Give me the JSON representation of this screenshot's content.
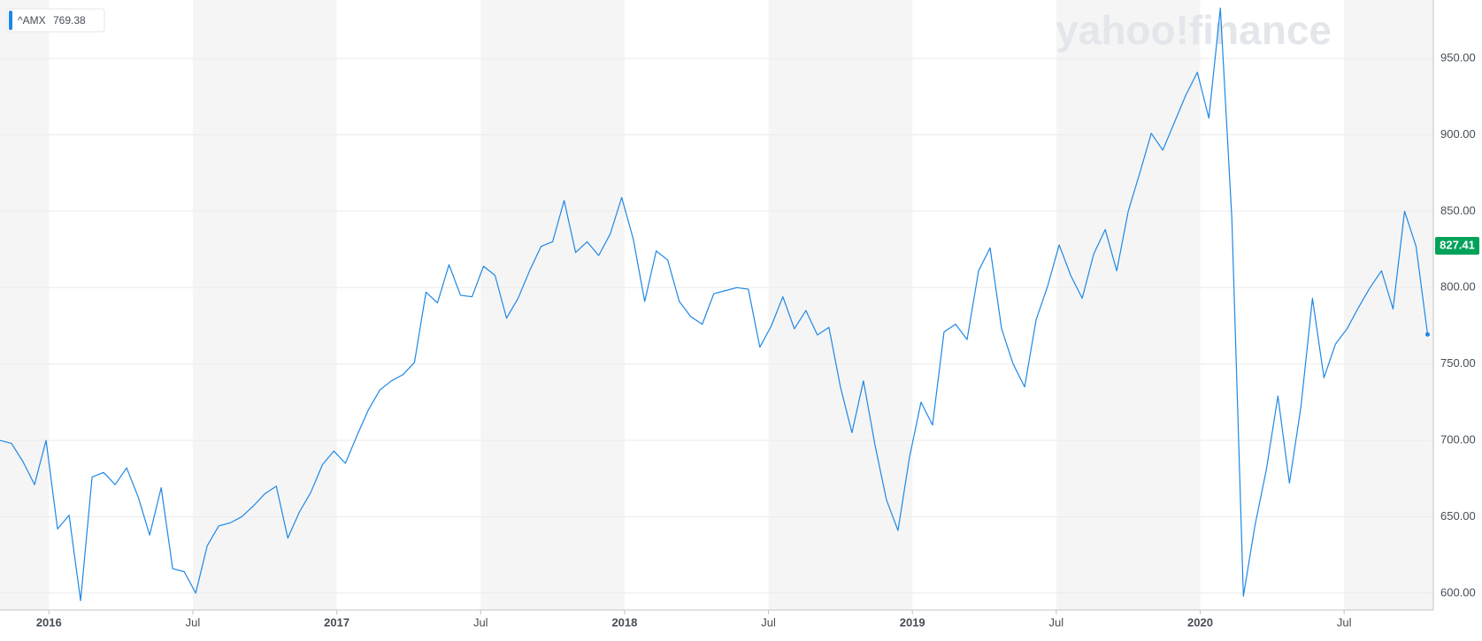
{
  "chart_data": {
    "type": "line",
    "watermark": "yahoo!finance",
    "legend": {
      "symbol": "^AMX",
      "value": 769.38
    },
    "marker_price": 827.41,
    "marker_color": "#00a25a",
    "band_color": "#f5f5f5",
    "grid": true,
    "xlim": [
      2015.83,
      2020.81
    ],
    "ylim": [
      588.9,
      988.3
    ],
    "xticks": [
      2016,
      {
        "value": 2016.5,
        "label": "Jul"
      },
      2017,
      {
        "value": 2017.5,
        "label": "Jul"
      },
      2018,
      {
        "value": 2018.5,
        "label": "Jul"
      },
      2019,
      {
        "value": 2019.5,
        "label": "Jul"
      },
      2020,
      {
        "value": 2020.5,
        "label": "Jul"
      }
    ],
    "yticks": [
      {
        "value": 600,
        "label": "600.00"
      },
      {
        "value": 650,
        "label": "650.00"
      },
      {
        "value": 700,
        "label": "700.00"
      },
      {
        "value": 750,
        "label": "750.00"
      },
      {
        "value": 800,
        "label": "800.00"
      },
      {
        "value": 850,
        "label": "850.00"
      },
      {
        "value": 900,
        "label": "900.00"
      },
      {
        "value": 950,
        "label": "950.00"
      }
    ],
    "x": [
      2015.83,
      2015.87,
      2015.91,
      2015.95,
      2015.99,
      2016.03,
      2016.07,
      2016.11,
      2016.15,
      2016.19,
      2016.23,
      2016.27,
      2016.31,
      2016.35,
      2016.39,
      2016.43,
      2016.47,
      2016.51,
      2016.55,
      2016.59,
      2016.63,
      2016.67,
      2016.71,
      2016.75,
      2016.79,
      2016.83,
      2016.87,
      2016.91,
      2016.95,
      2016.99,
      2017.03,
      2017.07,
      2017.11,
      2017.15,
      2017.19,
      2017.23,
      2017.27,
      2017.31,
      2017.35,
      2017.39,
      2017.43,
      2017.47,
      2017.51,
      2017.55,
      2017.59,
      2017.63,
      2017.67,
      2017.71,
      2017.75,
      2017.79,
      2017.83,
      2017.87,
      2017.91,
      2017.95,
      2017.99,
      2018.03,
      2018.07,
      2018.11,
      2018.15,
      2018.19,
      2018.23,
      2018.27,
      2018.31,
      2018.35,
      2018.39,
      2018.43,
      2018.47,
      2018.51,
      2018.55,
      2018.59,
      2018.63,
      2018.67,
      2018.71,
      2018.75,
      2018.79,
      2018.83,
      2018.87,
      2018.91,
      2018.95,
      2018.99,
      2019.03,
      2019.07,
      2019.11,
      2019.15,
      2019.19,
      2019.23,
      2019.27,
      2019.31,
      2019.35,
      2019.39,
      2019.43,
      2019.47,
      2019.51,
      2019.55,
      2019.59,
      2019.63,
      2019.67,
      2019.71,
      2019.75,
      2019.79,
      2019.83,
      2019.87,
      2019.91,
      2019.95,
      2019.99,
      2020.03,
      2020.07,
      2020.11,
      2020.15,
      2020.19,
      2020.23,
      2020.27,
      2020.31,
      2020.35,
      2020.39,
      2020.43,
      2020.47,
      2020.51,
      2020.55,
      2020.59,
      2020.63,
      2020.67,
      2020.71,
      2020.75,
      2020.79
    ],
    "series": [
      {
        "name": "^AMX",
        "color": "#1e88e5",
        "values": [
          700,
          698,
          686,
          671,
          700,
          642,
          651,
          595,
          676,
          679,
          671,
          682,
          663,
          638,
          669,
          616,
          614,
          600,
          631,
          644,
          646,
          650,
          657,
          665,
          670,
          636,
          653,
          666,
          684,
          693,
          685,
          703,
          720,
          733,
          739,
          743,
          751,
          797,
          790,
          815,
          795,
          794,
          814,
          808,
          780,
          793,
          811,
          827,
          830,
          857,
          823,
          830,
          821,
          835,
          859,
          832,
          791,
          824,
          818,
          791,
          781,
          776,
          796,
          798,
          800,
          799,
          761,
          775,
          794,
          773,
          785,
          769,
          774,
          735,
          705,
          739,
          697,
          661,
          641,
          689,
          725,
          710,
          771,
          776,
          766,
          811,
          826,
          773,
          750,
          735,
          779,
          801,
          828,
          808,
          793,
          822,
          838,
          811,
          850,
          875,
          901,
          890,
          908,
          926,
          941,
          911,
          983,
          845,
          598,
          644,
          681,
          729,
          672,
          722,
          793,
          741,
          763,
          773,
          787,
          800,
          811,
          786,
          850,
          827,
          769.38
        ]
      }
    ]
  }
}
